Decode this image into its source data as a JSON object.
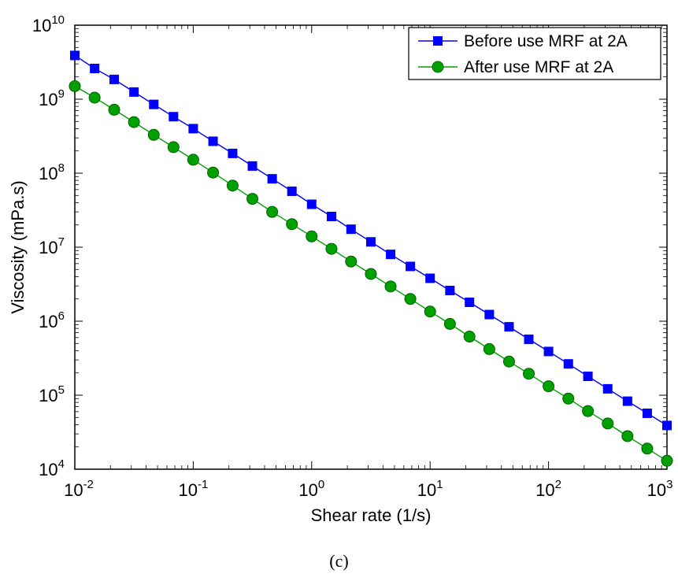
{
  "chart_data": {
    "type": "line",
    "xlabel": "Shear rate (1/s)",
    "ylabel": "Viscosity (mPa.s)",
    "xscale": "log",
    "yscale": "log",
    "xlim": [
      0.01,
      1000
    ],
    "ylim": [
      10000,
      10000000000
    ],
    "x_ticks": [
      {
        "base": "10",
        "exp": "-2",
        "value": 0.01
      },
      {
        "base": "10",
        "exp": "-1",
        "value": 0.1
      },
      {
        "base": "10",
        "exp": "0",
        "value": 1
      },
      {
        "base": "10",
        "exp": "1",
        "value": 10
      },
      {
        "base": "10",
        "exp": "2",
        "value": 100
      },
      {
        "base": "10",
        "exp": "3",
        "value": 1000
      }
    ],
    "y_ticks": [
      {
        "base": "10",
        "exp": "4",
        "value": 10000
      },
      {
        "base": "10",
        "exp": "5",
        "value": 100000
      },
      {
        "base": "10",
        "exp": "6",
        "value": 1000000
      },
      {
        "base": "10",
        "exp": "7",
        "value": 10000000
      },
      {
        "base": "10",
        "exp": "8",
        "value": 100000000
      },
      {
        "base": "10",
        "exp": "9",
        "value": 1000000000
      },
      {
        "base": "10",
        "exp": "10",
        "value": 10000000000
      }
    ],
    "grid": false,
    "legend_position": "top-right",
    "x": [
      0.01,
      0.0147,
      0.0215,
      0.0316,
      0.0464,
      0.0681,
      0.1,
      0.147,
      0.215,
      0.316,
      0.464,
      0.681,
      1,
      1.47,
      2.15,
      3.16,
      4.64,
      6.81,
      10,
      14.7,
      21.5,
      31.6,
      46.4,
      68.1,
      100,
      147,
      215,
      316,
      464,
      681,
      1000
    ],
    "series": [
      {
        "name": "Before use MRF at 2A",
        "color": "#0000ff",
        "marker": "square",
        "values": [
          3900000000,
          2600000000,
          1850000000,
          1250000000,
          850000000,
          580000000,
          400000000,
          270000000,
          185000000,
          125000000,
          84000000,
          57000000,
          38000000,
          26000000,
          17500000,
          11800000,
          8000000,
          5500000,
          3800000,
          2600000,
          1800000,
          1230000,
          840000,
          570000,
          390000,
          265000,
          180000,
          122000,
          83000,
          57000,
          39000
        ]
      },
      {
        "name": "After use MRF at 2A",
        "color": "#00a000",
        "marker": "circle",
        "values": [
          1500000000,
          1050000000,
          720000000,
          490000000,
          330000000,
          225000000,
          152000000,
          102000000,
          68000000,
          45000000,
          30000000,
          20500000,
          14000000,
          9500000,
          6400000,
          4350000,
          2950000,
          2000000,
          1350000,
          920000,
          620000,
          420000,
          285000,
          195000,
          132000,
          90000,
          61000,
          41500,
          28000,
          19000,
          13000
        ]
      }
    ]
  },
  "caption": "(c)"
}
